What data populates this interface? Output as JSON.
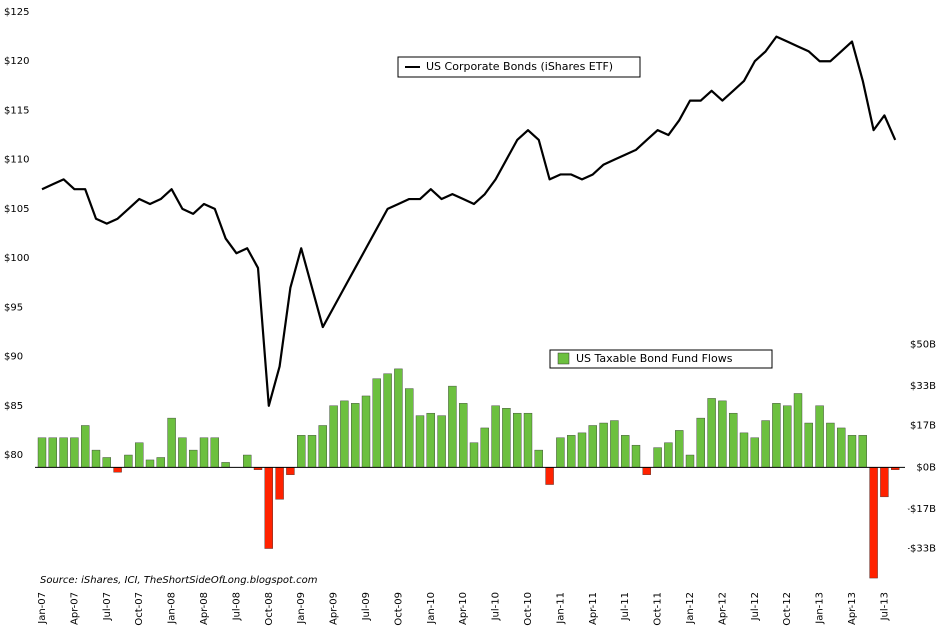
{
  "chart_data": {
    "type": "bar-line",
    "source": "Source: iShares, ICI, TheShortSideOfLong.blogspot.com",
    "categories": [
      "Jan-07",
      null,
      null,
      "Apr-07",
      null,
      null,
      "Jul-07",
      null,
      null,
      "Oct-07",
      null,
      null,
      "Jan-08",
      null,
      null,
      "Apr-08",
      null,
      null,
      "Jul-08",
      null,
      null,
      "Oct-08",
      null,
      null,
      "Jan-09",
      null,
      null,
      "Apr-09",
      null,
      null,
      "Jul-09",
      null,
      null,
      "Oct-09",
      null,
      null,
      "Jan-10",
      null,
      null,
      "Apr-10",
      null,
      null,
      "Jul-10",
      null,
      null,
      "Oct-10",
      null,
      null,
      "Jan-11",
      null,
      null,
      "Apr-11",
      null,
      null,
      "Jul-11",
      null,
      null,
      "Oct-11",
      null,
      null,
      "Jan-12",
      null,
      null,
      "Apr-12",
      null,
      null,
      "Jul-12",
      null,
      null,
      "Oct-12",
      null,
      null,
      "Jan-13",
      null,
      null,
      "Apr-13",
      null,
      null,
      "Jul-13",
      null
    ],
    "series": [
      {
        "name": "US Corporate Bonds (iShares ETF)",
        "type": "line",
        "axis": "y",
        "color": "#000000",
        "values": [
          107,
          107.5,
          108,
          107,
          107,
          104,
          103.5,
          104,
          105,
          106,
          105.5,
          106,
          107,
          105,
          104.5,
          105.5,
          105,
          102,
          100.5,
          101,
          99,
          85,
          89,
          97,
          101,
          97,
          93,
          95,
          97,
          99,
          101,
          103,
          105,
          105.5,
          106,
          106,
          107,
          106,
          106.5,
          106,
          105.5,
          106.5,
          108,
          110,
          112,
          113,
          112,
          108,
          108.5,
          108.5,
          108,
          108.5,
          109.5,
          110,
          110.5,
          111,
          112,
          113,
          112.5,
          114,
          116,
          116,
          117,
          116,
          117,
          118,
          120,
          121,
          122.5,
          122,
          121.5,
          121,
          120,
          120,
          121,
          122,
          118,
          113,
          114.5,
          112
        ]
      },
      {
        "name": "US Taxable Bond Fund Flows",
        "type": "bar",
        "axis": "y2",
        "color": "#6cc03f",
        "negative_color": "#ff2200",
        "values": [
          12,
          12,
          12,
          12,
          17,
          7,
          4,
          -2,
          5,
          10,
          3,
          4,
          20,
          12,
          7,
          12,
          12,
          2,
          0,
          5,
          -1,
          -33,
          -13,
          -3,
          13,
          13,
          17,
          25,
          27,
          26,
          29,
          36,
          38,
          40,
          32,
          21,
          22,
          21,
          33,
          26,
          10,
          16,
          25,
          24,
          22,
          22,
          7,
          -7,
          12,
          13,
          14,
          17,
          18,
          19,
          13,
          9,
          -3,
          8,
          10,
          15,
          5,
          20,
          28,
          27,
          22,
          14,
          12,
          19,
          26,
          25,
          30,
          18,
          25,
          18,
          16,
          13,
          13,
          -45,
          -12,
          -1
        ]
      }
    ],
    "ylim": [
      67,
      125
    ],
    "yticks": [
      {
        "value": 80,
        "label": "$80"
      },
      {
        "value": 85,
        "label": "$85"
      },
      {
        "value": 90,
        "label": "$90"
      },
      {
        "value": 95,
        "label": "$95"
      },
      {
        "value": 100,
        "label": "$100"
      },
      {
        "value": 105,
        "label": "$105"
      },
      {
        "value": 110,
        "label": "$110"
      },
      {
        "value": 115,
        "label": "$115"
      },
      {
        "value": 120,
        "label": "$120"
      },
      {
        "value": 125,
        "label": "$125"
      }
    ],
    "y2lim": [
      -47,
      185
    ],
    "y2ticks": [
      {
        "value": 50,
        "label": "$50B"
      },
      {
        "value": 33,
        "label": "$33B"
      },
      {
        "value": 17,
        "label": "$17B"
      },
      {
        "value": 0,
        "label": "$0B"
      },
      {
        "value": -17,
        "label": "-$17B"
      },
      {
        "value": -33,
        "label": "-$33B"
      }
    ]
  }
}
